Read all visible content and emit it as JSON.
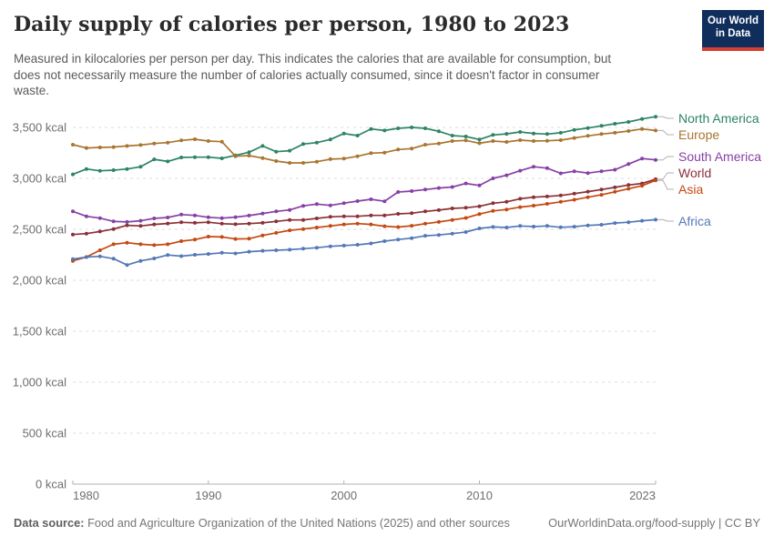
{
  "header": {
    "title": "Daily supply of calories per person, 1980 to 2023",
    "subtitle_lines": [
      "Measured in kilocalories per person per day. This indicates the calories that are available for consumption, but",
      "does not necessarily measure the number of calories actually consumed, since it doesn't factor in consumer",
      "waste."
    ]
  },
  "logo": {
    "line1": "Our World",
    "line2": "in Data",
    "bg_color": "#0f2e5c",
    "bar_color": "#d63e32"
  },
  "footer": {
    "source_label": "Data source:",
    "source_text": " Food and Agriculture Organization of the United Nations (2025) and other sources",
    "link_text": "OurWorldinData.org/food-supply | CC BY"
  },
  "chart_data": {
    "type": "line",
    "title": "Daily supply of calories per person, 1980 to 2023",
    "unit": "kcal",
    "xlabel": "",
    "ylabel": "",
    "xlim": [
      1980,
      2023
    ],
    "ylim": [
      0,
      3600
    ],
    "grid": "horizontal-dashed",
    "legend_position": "right",
    "x": [
      1980,
      1981,
      1982,
      1983,
      1984,
      1985,
      1986,
      1987,
      1988,
      1989,
      1990,
      1991,
      1992,
      1993,
      1994,
      1995,
      1996,
      1997,
      1998,
      1999,
      2000,
      2001,
      2002,
      2003,
      2004,
      2005,
      2006,
      2007,
      2008,
      2009,
      2010,
      2011,
      2012,
      2013,
      2014,
      2015,
      2016,
      2017,
      2018,
      2019,
      2020,
      2021,
      2022,
      2023
    ],
    "xticks": [
      {
        "year": 1980,
        "label": "1980",
        "align": "start"
      },
      {
        "year": 1990,
        "label": "1990",
        "align": "middle"
      },
      {
        "year": 2000,
        "label": "2000",
        "align": "middle"
      },
      {
        "year": 2010,
        "label": "2010",
        "align": "middle"
      },
      {
        "year": 2023,
        "label": "2023",
        "align": "end"
      }
    ],
    "yticks": {
      "values": [
        0,
        500,
        1000,
        1500,
        2000,
        2500,
        3000,
        3500
      ],
      "labels": [
        "0 kcal",
        "500 kcal",
        "1,000 kcal",
        "1,500 kcal",
        "2,000 kcal",
        "2,500 kcal",
        "3,000 kcal",
        "3,500 kcal"
      ]
    },
    "series": [
      {
        "name": "North America",
        "color": "#2c8465",
        "label_y": 130,
        "values": [
          3039,
          3092,
          3074,
          3080,
          3092,
          3113,
          3187,
          3166,
          3205,
          3208,
          3208,
          3196,
          3226,
          3256,
          3318,
          3262,
          3271,
          3337,
          3351,
          3381,
          3440,
          3420,
          3485,
          3470,
          3491,
          3500,
          3491,
          3462,
          3420,
          3411,
          3381,
          3426,
          3437,
          3455,
          3440,
          3435,
          3447,
          3476,
          3494,
          3515,
          3536,
          3554,
          3583,
          3605
        ]
      },
      {
        "name": "Europe",
        "color": "#a9752f",
        "label_y": 148,
        "values": [
          3330,
          3298,
          3304,
          3307,
          3318,
          3327,
          3342,
          3351,
          3372,
          3384,
          3366,
          3360,
          3217,
          3223,
          3199,
          3170,
          3152,
          3152,
          3163,
          3188,
          3194,
          3217,
          3247,
          3253,
          3283,
          3292,
          3330,
          3342,
          3366,
          3372,
          3345,
          3366,
          3357,
          3375,
          3366,
          3369,
          3375,
          3396,
          3417,
          3435,
          3447,
          3464,
          3485,
          3470
        ]
      },
      {
        "name": "South America",
        "color": "#8640a5",
        "label_y": 172,
        "values": [
          2676,
          2628,
          2610,
          2578,
          2572,
          2584,
          2607,
          2616,
          2645,
          2637,
          2618,
          2610,
          2620,
          2635,
          2655,
          2676,
          2690,
          2730,
          2747,
          2735,
          2756,
          2777,
          2795,
          2775,
          2866,
          2875,
          2890,
          2905,
          2915,
          2950,
          2930,
          3000,
          3030,
          3075,
          3114,
          3100,
          3049,
          3070,
          3052,
          3070,
          3085,
          3140,
          3195,
          3181
        ]
      },
      {
        "name": "World",
        "color": "#8b3039",
        "label_y": 190,
        "values": [
          2449,
          2458,
          2479,
          2503,
          2539,
          2533,
          2548,
          2557,
          2569,
          2563,
          2570,
          2555,
          2550,
          2556,
          2563,
          2578,
          2592,
          2592,
          2607,
          2622,
          2628,
          2628,
          2637,
          2637,
          2652,
          2658,
          2676,
          2688,
          2705,
          2712,
          2726,
          2756,
          2770,
          2800,
          2815,
          2822,
          2832,
          2850,
          2870,
          2890,
          2912,
          2935,
          2950,
          2992
        ]
      },
      {
        "name": "Asia",
        "color": "#c44912",
        "label_y": 208,
        "values": [
          2190,
          2229,
          2295,
          2354,
          2369,
          2354,
          2345,
          2354,
          2384,
          2399,
          2429,
          2425,
          2405,
          2408,
          2440,
          2465,
          2490,
          2503,
          2518,
          2533,
          2548,
          2556,
          2548,
          2530,
          2522,
          2535,
          2555,
          2572,
          2592,
          2612,
          2650,
          2680,
          2695,
          2718,
          2732,
          2750,
          2770,
          2790,
          2815,
          2838,
          2868,
          2898,
          2928,
          2980
        ]
      },
      {
        "name": "Africa",
        "color": "#5478b6",
        "label_y": 243,
        "values": [
          2208,
          2228,
          2235,
          2212,
          2150,
          2190,
          2214,
          2248,
          2237,
          2250,
          2258,
          2270,
          2263,
          2280,
          2289,
          2295,
          2300,
          2310,
          2320,
          2333,
          2340,
          2348,
          2362,
          2384,
          2400,
          2413,
          2437,
          2445,
          2458,
          2473,
          2509,
          2523,
          2518,
          2533,
          2527,
          2533,
          2520,
          2526,
          2538,
          2545,
          2562,
          2570,
          2584,
          2595
        ]
      }
    ]
  }
}
